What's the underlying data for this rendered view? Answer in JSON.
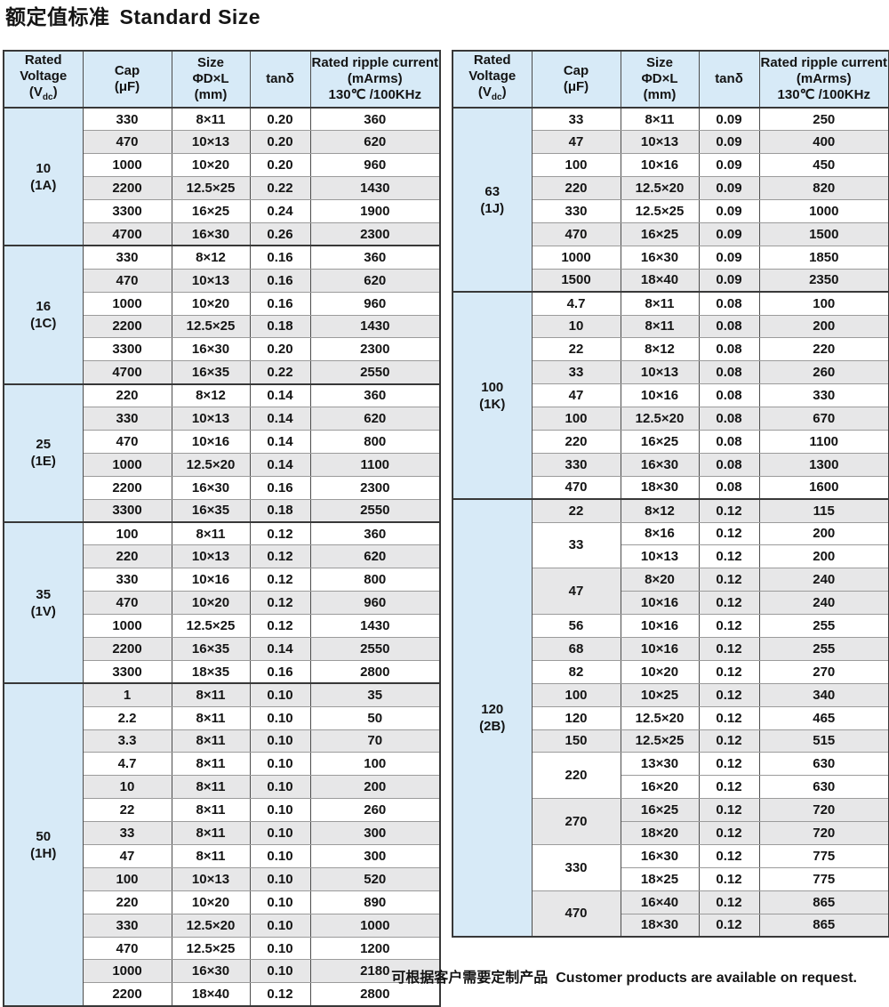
{
  "page": {
    "title_zh": "额定值标准",
    "title_en": "Standard Size",
    "footer_zh": "可根据客户需要定制产品",
    "footer_en": "Customer products are available on request."
  },
  "colors": {
    "header_bg": "#d7eaf7",
    "alt_row_bg": "#e7e7e8",
    "border_dark": "#383838",
    "border_mid": "#4d4d4d",
    "border_light": "#9b9b9b",
    "text": "#141414"
  },
  "header": {
    "columns": [
      {
        "id": "voltage",
        "lines": [
          "Rated",
          "Voltage",
          [
            "(V",
            {
              "sub": "dc"
            },
            ")"
          ]
        ]
      },
      {
        "id": "cap",
        "lines": [
          "Cap",
          "(μF)"
        ]
      },
      {
        "id": "size",
        "lines": [
          "Size",
          "ΦD×L",
          "(mm)"
        ]
      },
      {
        "id": "tand",
        "lines": [
          "tanδ"
        ]
      },
      {
        "id": "ripple",
        "lines": [
          "Rated ripple current",
          "(mArms)",
          "130℃ /100KHz"
        ]
      }
    ]
  },
  "tables": [
    {
      "name": "left",
      "sections": [
        {
          "voltage": "10",
          "code": "(1A)",
          "groups": [
            {
              "cap": "330",
              "rows": [
                [
                  "8×11",
                  "0.20",
                  "360"
                ]
              ]
            },
            {
              "cap": "470",
              "rows": [
                [
                  "10×13",
                  "0.20",
                  "620"
                ]
              ]
            },
            {
              "cap": "1000",
              "rows": [
                [
                  "10×20",
                  "0.20",
                  "960"
                ]
              ]
            },
            {
              "cap": "2200",
              "rows": [
                [
                  "12.5×25",
                  "0.22",
                  "1430"
                ]
              ]
            },
            {
              "cap": "3300",
              "rows": [
                [
                  "16×25",
                  "0.24",
                  "1900"
                ]
              ]
            },
            {
              "cap": "4700",
              "rows": [
                [
                  "16×30",
                  "0.26",
                  "2300"
                ]
              ]
            }
          ]
        },
        {
          "voltage": "16",
          "code": "(1C)",
          "groups": [
            {
              "cap": "330",
              "rows": [
                [
                  "8×12",
                  "0.16",
                  "360"
                ]
              ]
            },
            {
              "cap": "470",
              "rows": [
                [
                  "10×13",
                  "0.16",
                  "620"
                ]
              ]
            },
            {
              "cap": "1000",
              "rows": [
                [
                  "10×20",
                  "0.16",
                  "960"
                ]
              ]
            },
            {
              "cap": "2200",
              "rows": [
                [
                  "12.5×25",
                  "0.18",
                  "1430"
                ]
              ]
            },
            {
              "cap": "3300",
              "rows": [
                [
                  "16×30",
                  "0.20",
                  "2300"
                ]
              ]
            },
            {
              "cap": "4700",
              "rows": [
                [
                  "16×35",
                  "0.22",
                  "2550"
                ]
              ]
            }
          ]
        },
        {
          "voltage": "25",
          "code": "(1E)",
          "groups": [
            {
              "cap": "220",
              "rows": [
                [
                  "8×12",
                  "0.14",
                  "360"
                ]
              ]
            },
            {
              "cap": "330",
              "rows": [
                [
                  "10×13",
                  "0.14",
                  "620"
                ]
              ]
            },
            {
              "cap": "470",
              "rows": [
                [
                  "10×16",
                  "0.14",
                  "800"
                ]
              ]
            },
            {
              "cap": "1000",
              "rows": [
                [
                  "12.5×20",
                  "0.14",
                  "1100"
                ]
              ]
            },
            {
              "cap": "2200",
              "rows": [
                [
                  "16×30",
                  "0.16",
                  "2300"
                ]
              ]
            },
            {
              "cap": "3300",
              "rows": [
                [
                  "16×35",
                  "0.18",
                  "2550"
                ]
              ]
            }
          ]
        },
        {
          "voltage": "35",
          "code": "(1V)",
          "groups": [
            {
              "cap": "100",
              "rows": [
                [
                  "8×11",
                  "0.12",
                  "360"
                ]
              ]
            },
            {
              "cap": "220",
              "rows": [
                [
                  "10×13",
                  "0.12",
                  "620"
                ]
              ]
            },
            {
              "cap": "330",
              "rows": [
                [
                  "10×16",
                  "0.12",
                  "800"
                ]
              ]
            },
            {
              "cap": "470",
              "rows": [
                [
                  "10×20",
                  "0.12",
                  "960"
                ]
              ]
            },
            {
              "cap": "1000",
              "rows": [
                [
                  "12.5×25",
                  "0.12",
                  "1430"
                ]
              ]
            },
            {
              "cap": "2200",
              "rows": [
                [
                  "16×35",
                  "0.14",
                  "2550"
                ]
              ]
            },
            {
              "cap": "3300",
              "rows": [
                [
                  "18×35",
                  "0.16",
                  "2800"
                ]
              ]
            }
          ]
        },
        {
          "voltage": "50",
          "code": "(1H)",
          "groups": [
            {
              "cap": "1",
              "rows": [
                [
                  "8×11",
                  "0.10",
                  "35"
                ]
              ]
            },
            {
              "cap": "2.2",
              "rows": [
                [
                  "8×11",
                  "0.10",
                  "50"
                ]
              ]
            },
            {
              "cap": "3.3",
              "rows": [
                [
                  "8×11",
                  "0.10",
                  "70"
                ]
              ]
            },
            {
              "cap": "4.7",
              "rows": [
                [
                  "8×11",
                  "0.10",
                  "100"
                ]
              ]
            },
            {
              "cap": "10",
              "rows": [
                [
                  "8×11",
                  "0.10",
                  "200"
                ]
              ]
            },
            {
              "cap": "22",
              "rows": [
                [
                  "8×11",
                  "0.10",
                  "260"
                ]
              ]
            },
            {
              "cap": "33",
              "rows": [
                [
                  "8×11",
                  "0.10",
                  "300"
                ]
              ]
            },
            {
              "cap": "47",
              "rows": [
                [
                  "8×11",
                  "0.10",
                  "300"
                ]
              ]
            },
            {
              "cap": "100",
              "rows": [
                [
                  "10×13",
                  "0.10",
                  "520"
                ]
              ]
            },
            {
              "cap": "220",
              "rows": [
                [
                  "10×20",
                  "0.10",
                  "890"
                ]
              ]
            },
            {
              "cap": "330",
              "rows": [
                [
                  "12.5×20",
                  "0.10",
                  "1000"
                ]
              ]
            },
            {
              "cap": "470",
              "rows": [
                [
                  "12.5×25",
                  "0.10",
                  "1200"
                ]
              ]
            },
            {
              "cap": "1000",
              "rows": [
                [
                  "16×30",
                  "0.10",
                  "2180"
                ]
              ]
            },
            {
              "cap": "2200",
              "rows": [
                [
                  "18×40",
                  "0.12",
                  "2800"
                ]
              ]
            }
          ]
        }
      ]
    },
    {
      "name": "right",
      "sections": [
        {
          "voltage": "63",
          "code": "(1J)",
          "groups": [
            {
              "cap": "33",
              "rows": [
                [
                  "8×11",
                  "0.09",
                  "250"
                ]
              ]
            },
            {
              "cap": "47",
              "rows": [
                [
                  "10×13",
                  "0.09",
                  "400"
                ]
              ]
            },
            {
              "cap": "100",
              "rows": [
                [
                  "10×16",
                  "0.09",
                  "450"
                ]
              ]
            },
            {
              "cap": "220",
              "rows": [
                [
                  "12.5×20",
                  "0.09",
                  "820"
                ]
              ]
            },
            {
              "cap": "330",
              "rows": [
                [
                  "12.5×25",
                  "0.09",
                  "1000"
                ]
              ]
            },
            {
              "cap": "470",
              "rows": [
                [
                  "16×25",
                  "0.09",
                  "1500"
                ]
              ]
            },
            {
              "cap": "1000",
              "rows": [
                [
                  "16×30",
                  "0.09",
                  "1850"
                ]
              ]
            },
            {
              "cap": "1500",
              "rows": [
                [
                  "18×40",
                  "0.09",
                  "2350"
                ]
              ]
            }
          ]
        },
        {
          "voltage": "100",
          "code": "(1K)",
          "groups": [
            {
              "cap": "4.7",
              "rows": [
                [
                  "8×11",
                  "0.08",
                  "100"
                ]
              ]
            },
            {
              "cap": "10",
              "rows": [
                [
                  "8×11",
                  "0.08",
                  "200"
                ]
              ]
            },
            {
              "cap": "22",
              "rows": [
                [
                  "8×12",
                  "0.08",
                  "220"
                ]
              ]
            },
            {
              "cap": "33",
              "rows": [
                [
                  "10×13",
                  "0.08",
                  "260"
                ]
              ]
            },
            {
              "cap": "47",
              "rows": [
                [
                  "10×16",
                  "0.08",
                  "330"
                ]
              ]
            },
            {
              "cap": "100",
              "rows": [
                [
                  "12.5×20",
                  "0.08",
                  "670"
                ]
              ]
            },
            {
              "cap": "220",
              "rows": [
                [
                  "16×25",
                  "0.08",
                  "1100"
                ]
              ]
            },
            {
              "cap": "330",
              "rows": [
                [
                  "16×30",
                  "0.08",
                  "1300"
                ]
              ]
            },
            {
              "cap": "470",
              "rows": [
                [
                  "18×30",
                  "0.08",
                  "1600"
                ]
              ]
            }
          ]
        },
        {
          "voltage": "120",
          "code": "(2B)",
          "groups": [
            {
              "cap": "22",
              "rows": [
                [
                  "8×12",
                  "0.12",
                  "115"
                ]
              ]
            },
            {
              "cap": "33",
              "rows": [
                [
                  "8×16",
                  "0.12",
                  "200"
                ],
                [
                  "10×13",
                  "0.12",
                  "200"
                ]
              ]
            },
            {
              "cap": "47",
              "rows": [
                [
                  "8×20",
                  "0.12",
                  "240"
                ],
                [
                  "10×16",
                  "0.12",
                  "240"
                ]
              ]
            },
            {
              "cap": "56",
              "rows": [
                [
                  "10×16",
                  "0.12",
                  "255"
                ]
              ]
            },
            {
              "cap": "68",
              "rows": [
                [
                  "10×16",
                  "0.12",
                  "255"
                ]
              ]
            },
            {
              "cap": "82",
              "rows": [
                [
                  "10×20",
                  "0.12",
                  "270"
                ]
              ]
            },
            {
              "cap": "100",
              "rows": [
                [
                  "10×25",
                  "0.12",
                  "340"
                ]
              ]
            },
            {
              "cap": "120",
              "rows": [
                [
                  "12.5×20",
                  "0.12",
                  "465"
                ]
              ]
            },
            {
              "cap": "150",
              "rows": [
                [
                  "12.5×25",
                  "0.12",
                  "515"
                ]
              ]
            },
            {
              "cap": "220",
              "rows": [
                [
                  "13×30",
                  "0.12",
                  "630"
                ],
                [
                  "16×20",
                  "0.12",
                  "630"
                ]
              ]
            },
            {
              "cap": "270",
              "rows": [
                [
                  "16×25",
                  "0.12",
                  "720"
                ],
                [
                  "18×20",
                  "0.12",
                  "720"
                ]
              ]
            },
            {
              "cap": "330",
              "rows": [
                [
                  "16×30",
                  "0.12",
                  "775"
                ],
                [
                  "18×25",
                  "0.12",
                  "775"
                ]
              ]
            },
            {
              "cap": "470",
              "rows": [
                [
                  "16×40",
                  "0.12",
                  "865"
                ],
                [
                  "18×30",
                  "0.12",
                  "865"
                ]
              ]
            }
          ]
        }
      ]
    }
  ]
}
